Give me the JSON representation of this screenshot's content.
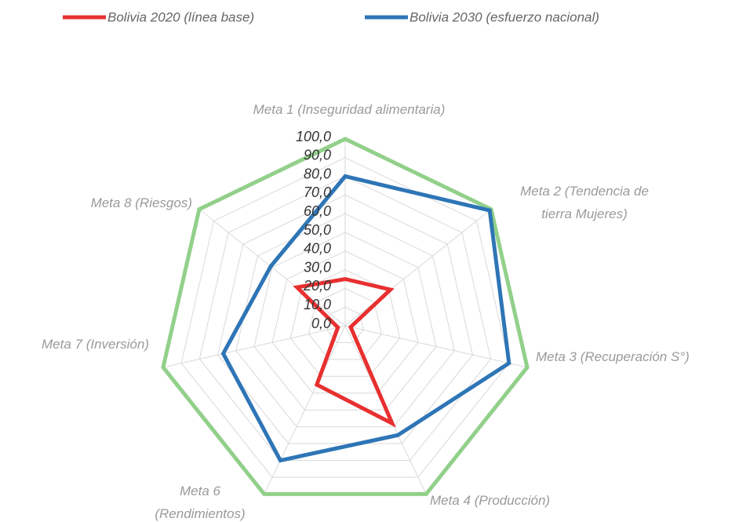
{
  "chart_data": {
    "type": "radar",
    "categories": [
      [
        "Meta 1  (Inseguridad  alimentaria)"
      ],
      [
        "Meta 2 (Tendencia de",
        "tierra Mujeres)"
      ],
      [
        "Meta 3 (Recuperación S°)"
      ],
      [
        "Meta 4 (Producción)"
      ],
      [
        "Meta 6",
        "(Rendimientos)"
      ],
      [
        "Meta 7 (Inversión)"
      ],
      [
        "Meta 8 (Riesgos)"
      ]
    ],
    "series": [
      {
        "color": "#92d08a",
        "values": [
          100,
          100,
          100,
          100,
          100,
          100,
          100
        ]
      },
      {
        "name": "Bolivia 2030 (esfuerzo nacional)",
        "color": "#2e75b6",
        "values": [
          80,
          99,
          90,
          65,
          80,
          67,
          51
        ]
      },
      {
        "name": "Bolivia 2020 (línea base)",
        "color": "#e83030",
        "values": [
          25,
          31,
          3,
          58,
          35,
          4,
          33
        ]
      }
    ],
    "ylim": [
      0,
      100
    ],
    "yticks": [
      {
        "value": 0,
        "label": "0,0"
      },
      {
        "value": 10,
        "label": "10,0"
      },
      {
        "value": 20,
        "label": "20,0"
      },
      {
        "value": 30,
        "label": "30,0"
      },
      {
        "value": 40,
        "label": "40,0"
      },
      {
        "value": 50,
        "label": "50,0"
      },
      {
        "value": 60,
        "label": "60,0"
      },
      {
        "value": 70,
        "label": "70,0"
      },
      {
        "value": 80,
        "label": "80,0"
      },
      {
        "value": 90,
        "label": "90,0"
      },
      {
        "value": 100,
        "label": "100,0"
      }
    ],
    "grid": true
  }
}
